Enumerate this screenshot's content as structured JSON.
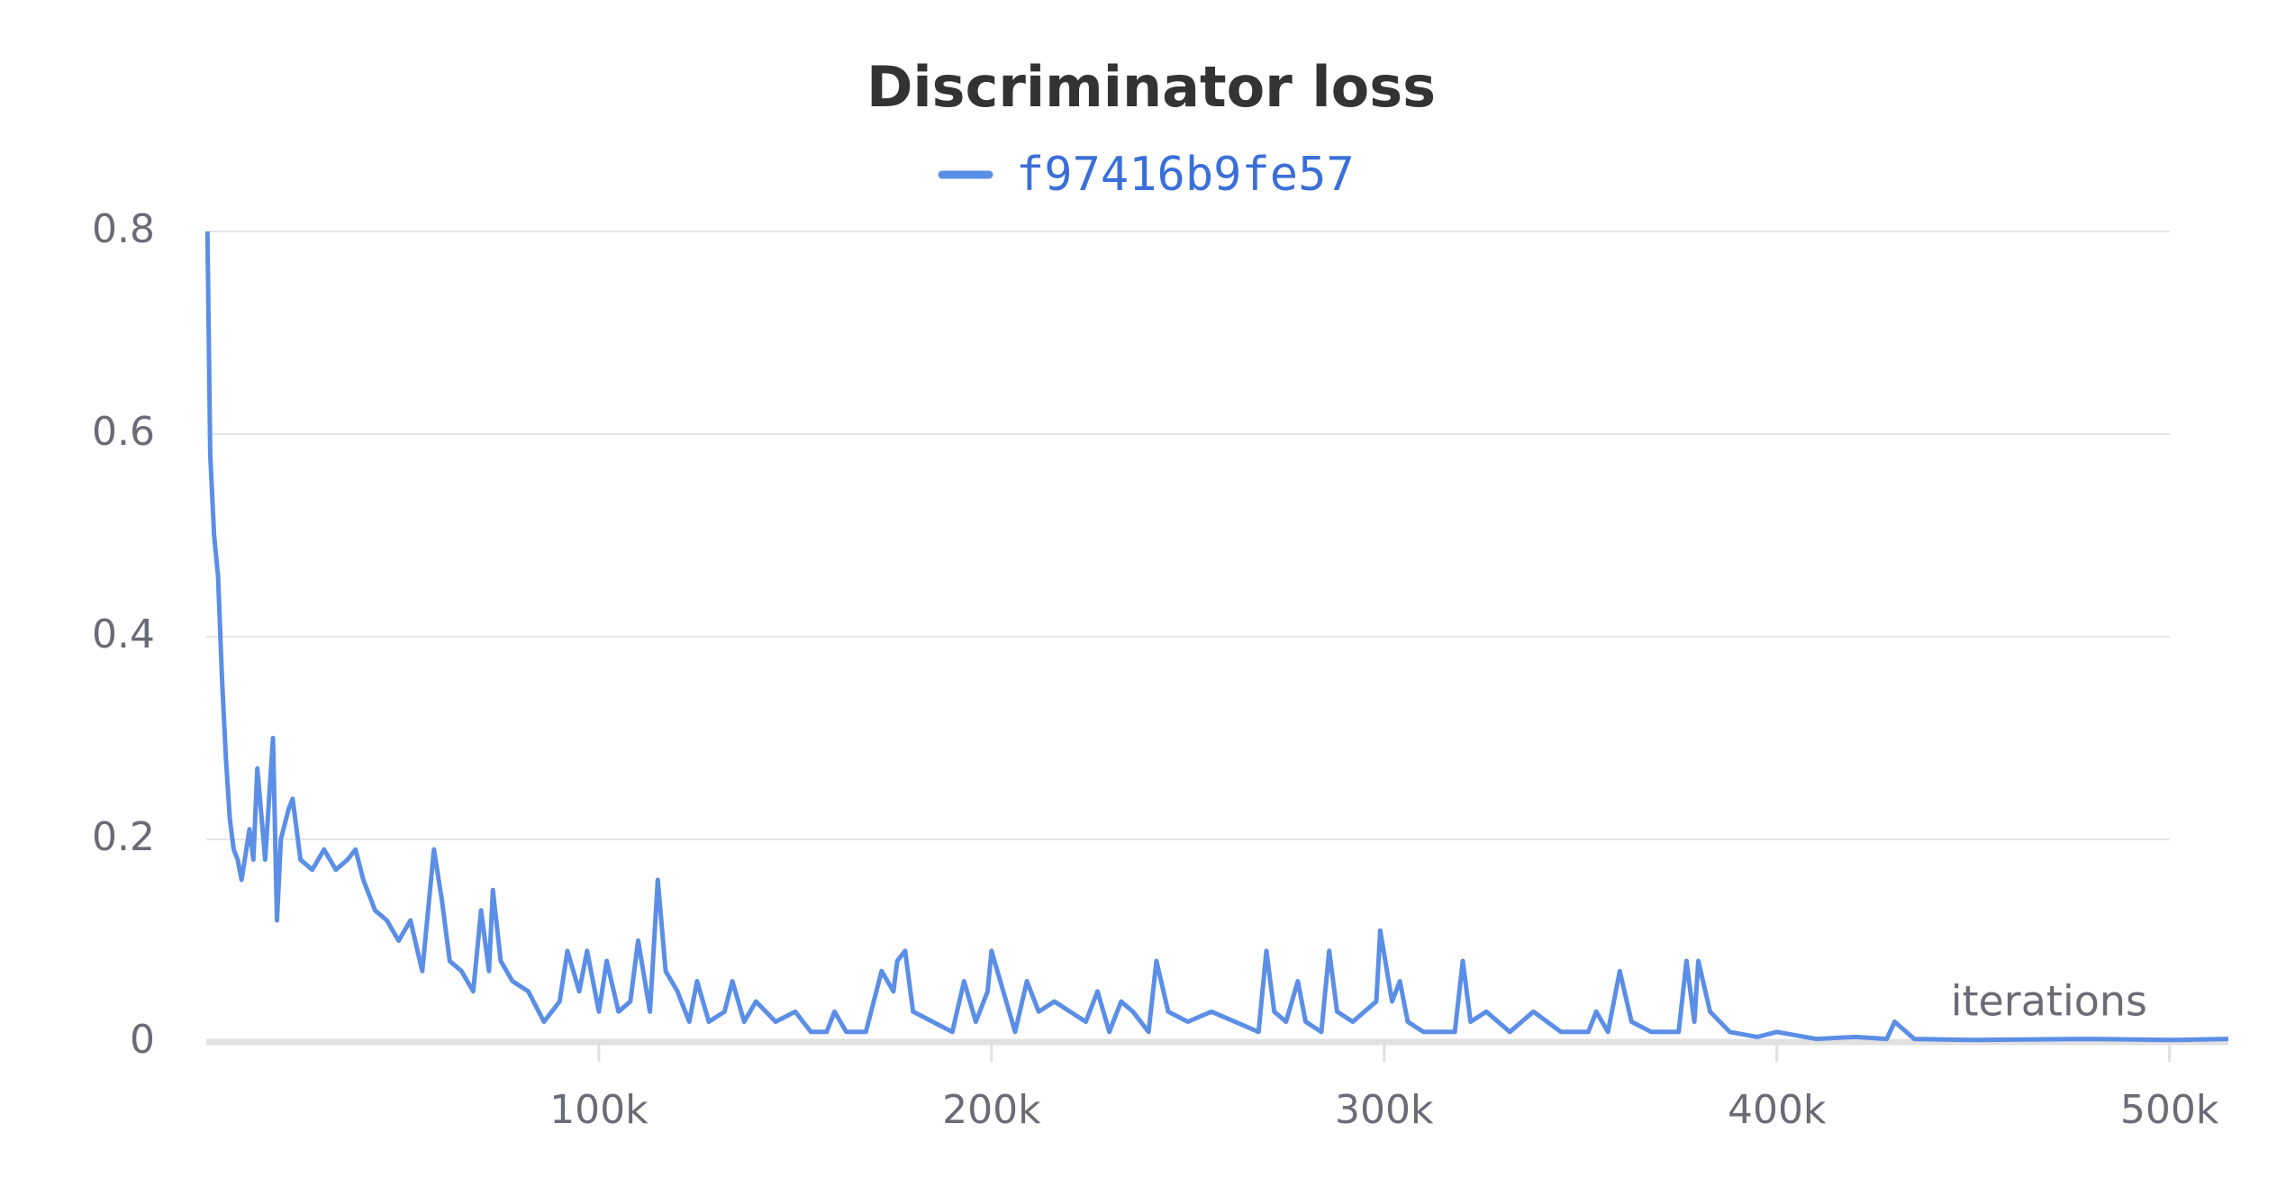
{
  "chart_data": {
    "type": "line",
    "title": "Discriminator loss",
    "x_label": "iterations",
    "x": [
      300,
      1000,
      2000,
      3000,
      4000,
      5000,
      6000,
      7000,
      8000,
      9000,
      11000,
      12000,
      13000,
      15000,
      17000,
      18000,
      19000,
      21000,
      22000,
      24000,
      27000,
      30000,
      33000,
      36000,
      38000,
      40000,
      43000,
      46000,
      49000,
      52000,
      55000,
      58000,
      60000,
      62000,
      65000,
      68000,
      70000,
      72000,
      73000,
      75000,
      78000,
      82000,
      86000,
      90000,
      92000,
      95000,
      97000,
      100000,
      102000,
      105000,
      108000,
      110000,
      113000,
      115000,
      117000,
      120000,
      123000,
      125000,
      128000,
      132000,
      134000,
      137000,
      140000,
      145000,
      150000,
      154000,
      158000,
      160000,
      163000,
      168000,
      172000,
      175000,
      176000,
      178000,
      180000,
      185000,
      190000,
      193000,
      196000,
      199000,
      200000,
      203000,
      206000,
      209000,
      212000,
      216000,
      220000,
      224000,
      227000,
      230000,
      233000,
      236000,
      240000,
      242000,
      245000,
      250000,
      256000,
      262000,
      268000,
      270000,
      272000,
      275000,
      278000,
      280000,
      284000,
      286000,
      288000,
      292000,
      298000,
      299000,
      302000,
      304000,
      306000,
      310000,
      318000,
      320000,
      322000,
      326000,
      332000,
      338000,
      345000,
      352000,
      354000,
      357000,
      360000,
      363000,
      368000,
      375000,
      377000,
      379000,
      380000,
      383000,
      388000,
      395000,
      400000,
      410000,
      420000,
      428000,
      430000,
      435000,
      450000,
      480000,
      500000,
      515000
    ],
    "series": [
      {
        "name": "f97416b9fe57",
        "color": "#5b8ee6",
        "values": [
          0.8,
          0.58,
          0.5,
          0.46,
          0.36,
          0.28,
          0.22,
          0.19,
          0.18,
          0.16,
          0.21,
          0.18,
          0.27,
          0.18,
          0.3,
          0.12,
          0.2,
          0.23,
          0.24,
          0.18,
          0.17,
          0.19,
          0.17,
          0.18,
          0.19,
          0.16,
          0.13,
          0.12,
          0.1,
          0.12,
          0.07,
          0.19,
          0.14,
          0.08,
          0.07,
          0.05,
          0.13,
          0.07,
          0.15,
          0.08,
          0.06,
          0.05,
          0.02,
          0.04,
          0.09,
          0.05,
          0.09,
          0.03,
          0.08,
          0.03,
          0.04,
          0.1,
          0.03,
          0.16,
          0.07,
          0.05,
          0.02,
          0.06,
          0.02,
          0.03,
          0.06,
          0.02,
          0.04,
          0.02,
          0.03,
          0.01,
          0.01,
          0.03,
          0.01,
          0.01,
          0.07,
          0.05,
          0.08,
          0.09,
          0.03,
          0.02,
          0.01,
          0.06,
          0.02,
          0.05,
          0.09,
          0.05,
          0.01,
          0.06,
          0.03,
          0.04,
          0.03,
          0.02,
          0.05,
          0.01,
          0.04,
          0.03,
          0.01,
          0.08,
          0.03,
          0.02,
          0.03,
          0.02,
          0.01,
          0.09,
          0.03,
          0.02,
          0.06,
          0.02,
          0.01,
          0.09,
          0.03,
          0.02,
          0.04,
          0.11,
          0.04,
          0.06,
          0.02,
          0.01,
          0.01,
          0.08,
          0.02,
          0.03,
          0.01,
          0.03,
          0.01,
          0.01,
          0.03,
          0.01,
          0.07,
          0.02,
          0.01,
          0.01,
          0.08,
          0.02,
          0.08,
          0.03,
          0.01,
          0.005,
          0.01,
          0.003,
          0.005,
          0.003,
          0.02,
          0.003,
          0.002,
          0.003,
          0.002,
          0.003
        ]
      }
    ],
    "xlim": [
      0,
      515000
    ],
    "xticks": [
      {
        "value": 100000,
        "label": "100k"
      },
      {
        "value": 200000,
        "label": "200k"
      },
      {
        "value": 300000,
        "label": "300k"
      },
      {
        "value": 400000,
        "label": "400k"
      },
      {
        "value": 500000,
        "label": "500k"
      }
    ],
    "ylim": [
      0,
      0.8
    ],
    "yticks": [
      0,
      0.2,
      0.4,
      0.6,
      0.8
    ],
    "grid": true,
    "legend": "top"
  }
}
